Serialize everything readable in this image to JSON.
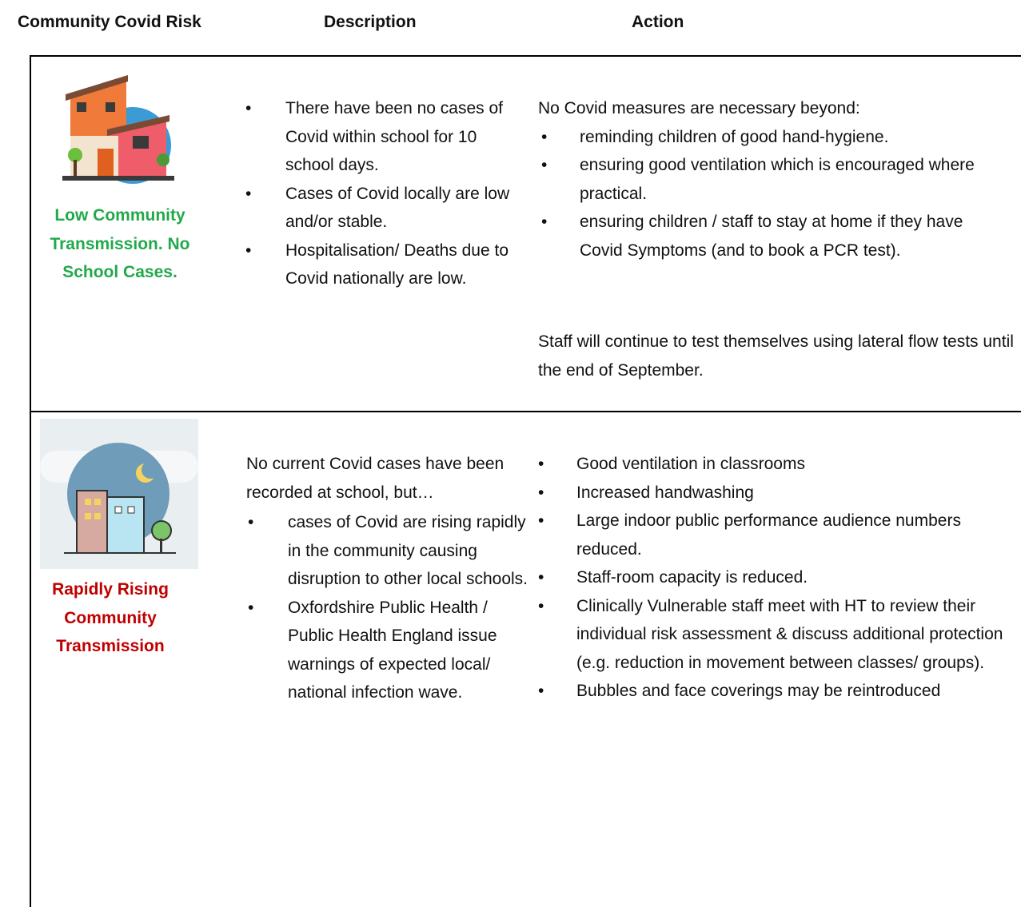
{
  "header": {
    "columns": [
      "Community Covid Risk",
      "Description",
      "Action"
    ]
  },
  "rows": [
    {
      "risk": "Low Community Transmission. No School Cases.",
      "description": {
        "bullets": [
          "There have been no cases of Covid within school for 10 school days.",
          "Cases of Covid locally are low and/or stable.",
          "Hospitalisation/ Deaths due to Covid nationally are low."
        ]
      },
      "action": {
        "intro": "No Covid measures are necessary beyond:",
        "bullets": [
          "reminding children of good hand-hygiene.",
          "ensuring good ventilation which is encouraged where practical.",
          "ensuring children / staff to stay at home if they have Covid Symptoms (and to book a PCR test)."
        ],
        "outro": "Staff will continue to test themselves using lateral flow tests until the end of September."
      }
    },
    {
      "risk": "Rapidly Rising Community Transmission",
      "description": {
        "intro": "No current Covid cases have been recorded at school, but…",
        "bullets": [
          "cases of Covid are rising rapidly in the community causing disruption to other local schools.",
          "Oxfordshire Public Health / Public Health England issue warnings of expected local/ national infection wave."
        ]
      },
      "action": {
        "bullets": [
          "Good ventilation in classrooms",
          "Increased handwashing",
          "Large indoor public performance audience numbers reduced.",
          "Staff-room capacity is reduced.",
          "Clinically Vulnerable staff meet with HT to review their individual risk assessment & discuss additional protection (e.g. reduction in movement between classes/ groups).",
          "Bubbles and face coverings may be reintroduced"
        ]
      }
    }
  ]
}
